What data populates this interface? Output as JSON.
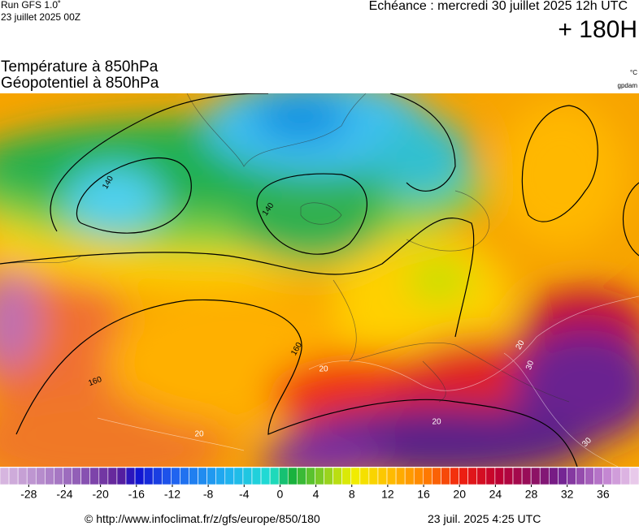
{
  "header": {
    "run": "Run GFS 1.0˚",
    "run_date": "23 juillet 2025 00Z",
    "forecast": "Echéance : mercredi 30 juillet 2025 12h UTC",
    "lead": "+ 180H"
  },
  "titles": {
    "temperature": "Température à 850hPa",
    "geopotential": "Géopotentiel à 850hPa",
    "temp_unit": "°C",
    "geo_unit": "gpdam"
  },
  "map": {
    "contour_labels": [
      "140",
      "140",
      "160",
      "160",
      "20",
      "20",
      "20",
      "20",
      "30",
      "30"
    ]
  },
  "colorbar": {
    "lim": [
      -31.2,
      40
    ],
    "ticks": [
      -28,
      -24,
      -20,
      -16,
      -12,
      -8,
      -4,
      0,
      4,
      8,
      12,
      16,
      20,
      24,
      28,
      32,
      36
    ]
  },
  "footer": {
    "source": "© http://www.infoclimat.fr/z/gfs/europe/850/180",
    "generated": "23 juil. 2025  4:25 UTC"
  }
}
